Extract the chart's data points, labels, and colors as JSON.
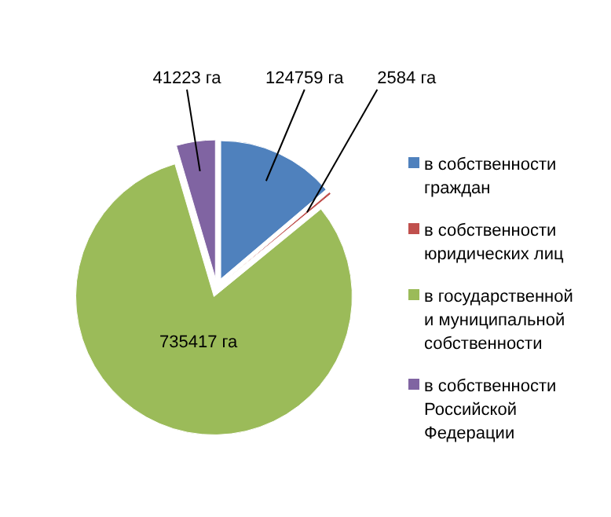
{
  "chart_data": {
    "type": "pie",
    "categories": [
      "в собственности граждан",
      "в собственности юридических лиц",
      "в государственной и муниципальной собственности",
      "в собственности Российской Федерации"
    ],
    "values": [
      124759,
      2584,
      735417,
      41223
    ],
    "colors": [
      "#4f81bd",
      "#c0504d",
      "#9bbb59",
      "#8064a2"
    ],
    "value_labels": [
      "124759 га",
      "2584 га",
      "735417 га",
      "41223 га"
    ],
    "legend": "right"
  }
}
